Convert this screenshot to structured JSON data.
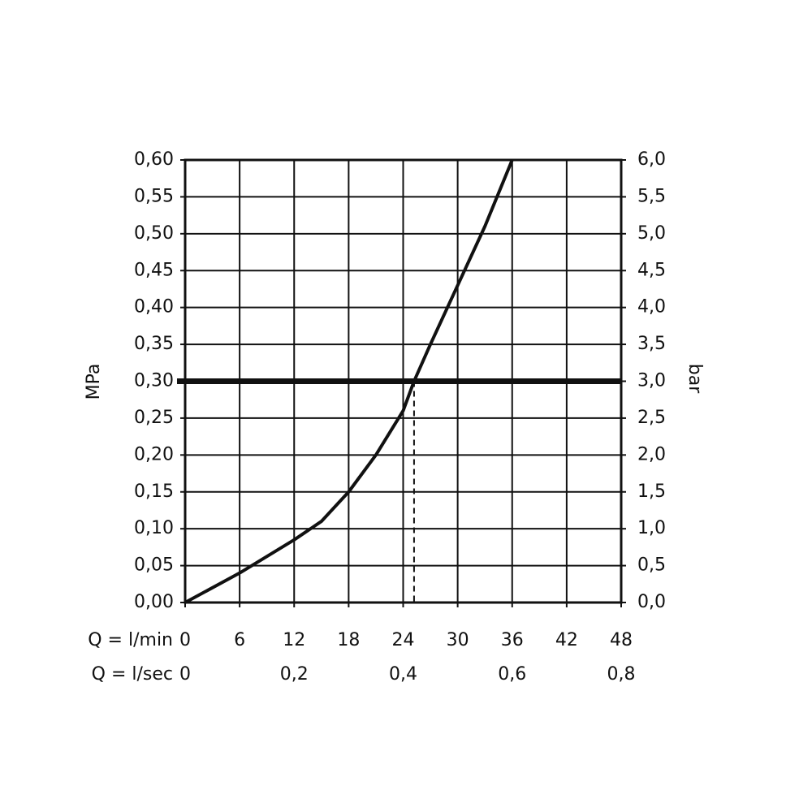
{
  "chart_data": {
    "type": "line",
    "x": [
      0,
      6,
      12,
      15,
      18,
      21,
      24,
      25.2,
      27,
      30,
      33,
      36
    ],
    "series": [
      {
        "color": "#111111",
        "values": [
          0,
          0.04,
          0.085,
          0.11,
          0.15,
          0.2,
          0.26,
          0.3,
          0.35,
          0.43,
          0.51,
          0.6
        ]
      }
    ],
    "xlabel": "Q = l/min",
    "xlim": [
      0,
      48
    ],
    "xticks": [
      0,
      6,
      12,
      18,
      24,
      30,
      36,
      42,
      48
    ],
    "x2label": "Q = l/sec",
    "x2lim": [
      0,
      0.8
    ],
    "x2ticks": [
      0,
      {
        "value": 0.2,
        "label": "0,2"
      },
      {
        "value": 0.4,
        "label": "0,4"
      },
      {
        "value": 0.6,
        "label": "0,6"
      },
      {
        "value": 0.8,
        "label": "0,8"
      }
    ],
    "ylabel": "MPa",
    "ylim": [
      0,
      0.6
    ],
    "yticks": [
      {
        "value": 0,
        "label": "0,00"
      },
      {
        "value": 0.05,
        "label": "0,05"
      },
      {
        "value": 0.1,
        "label": "0,10"
      },
      {
        "value": 0.15,
        "label": "0,15"
      },
      {
        "value": 0.2,
        "label": "0,20"
      },
      {
        "value": 0.25,
        "label": "0,25"
      },
      {
        "value": 0.3,
        "label": "0,30"
      },
      {
        "value": 0.35,
        "label": "0,35"
      },
      {
        "value": 0.4,
        "label": "0,40"
      },
      {
        "value": 0.45,
        "label": "0,45"
      },
      {
        "value": 0.5,
        "label": "0,50"
      },
      {
        "value": 0.55,
        "label": "0,55"
      },
      {
        "value": 0.6,
        "label": "0,60"
      }
    ],
    "y2label": "bar",
    "y2lim": [
      0,
      6
    ],
    "y2ticks": [
      {
        "value": 0,
        "label": "0,0"
      },
      {
        "value": 0.5,
        "label": "0,5"
      },
      {
        "value": 1,
        "label": "1,0"
      },
      {
        "value": 1.5,
        "label": "1,5"
      },
      {
        "value": 2,
        "label": "2,0"
      },
      {
        "value": 2.5,
        "label": "2,5"
      },
      {
        "value": 3,
        "label": "3,0"
      },
      {
        "value": 3.5,
        "label": "3,5"
      },
      {
        "value": 4,
        "label": "4,0"
      },
      {
        "value": 4.5,
        "label": "4,5"
      },
      {
        "value": 5,
        "label": "5,0"
      },
      {
        "value": 5.5,
        "label": "5,5"
      },
      {
        "value": 6,
        "label": "6,0"
      }
    ],
    "grid": true,
    "reference": {
      "y": 0.3,
      "x": 25.2
    }
  }
}
